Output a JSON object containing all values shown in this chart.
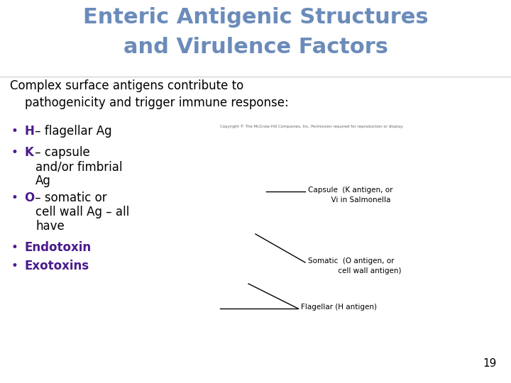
{
  "title_line1": "Enteric Antigenic Structures",
  "title_line2": "and Virulence Factors",
  "title_color": "#6b8cba",
  "subtitle_line1": "Complex surface antigens contribute to",
  "subtitle_line2": "    pathogenicity and trigger immune response:",
  "subtitle_color": "#000000",
  "bullet_color": "#4a1a8c",
  "copyright_text": "Copyright © The McGraw-Hill Companies, Inc. Permission required for reproduction or display.",
  "page_number": "19",
  "bg_color": "#ffffff",
  "text_color": "#000000",
  "diagram_text_color": "#000000"
}
